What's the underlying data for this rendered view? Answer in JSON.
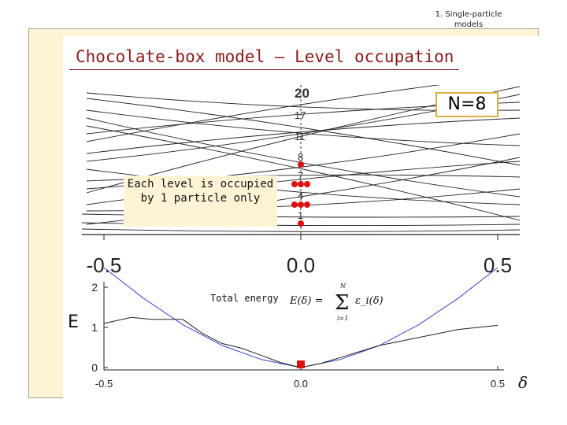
{
  "slide": {
    "section_note": "1. Single-particle models",
    "title": "Chocolate-box model – Level occupation",
    "particle_count": "N=8",
    "note": "Each level is occupied by 1 particle only",
    "total_energy_label": "Total energy",
    "formula_lhs": "E(δ) =",
    "formula_sum": "Σ",
    "formula_upper": "N",
    "formula_lower": "i=1",
    "formula_term": "ε_i(δ)",
    "energy_axis_letter": "E",
    "delta_symbol": "δ"
  },
  "chart_data": [
    {
      "type": "line",
      "description_kind": "single-particle level diagram",
      "x_tick_labels": [
        "-0.5",
        "0.0",
        "0.5"
      ],
      "xlim": [
        -0.5,
        0.5
      ],
      "level_labels_at_zero": [
        "1",
        "4",
        "7",
        "8",
        "11",
        "17",
        "20"
      ],
      "occupied_dots": [
        {
          "level": "1",
          "count": 1
        },
        {
          "level": "4",
          "count": 3
        },
        {
          "level": "7",
          "count": 3
        },
        {
          "level": "8",
          "count": 1
        }
      ],
      "colors": {
        "levels": "#222222",
        "dots": "#dd1111"
      }
    },
    {
      "type": "line",
      "x_tick_labels": [
        "-0.5",
        "0.0",
        "0.5"
      ],
      "y_tick_labels": [
        "0",
        "1",
        "2"
      ],
      "xlim": [
        -0.5,
        0.5
      ],
      "ylim": [
        0,
        2
      ],
      "series": [
        {
          "color": "#3344cc",
          "x": [
            -0.5,
            -0.4,
            -0.3,
            -0.2,
            -0.1,
            0.0,
            0.1,
            0.2,
            0.3,
            0.4,
            0.5
          ],
          "y": [
            2.6,
            1.73,
            1.07,
            0.55,
            0.2,
            0.0,
            0.2,
            0.55,
            1.07,
            1.73,
            2.6
          ]
        },
        {
          "color": "#222222",
          "x": [
            -0.5,
            -0.43,
            -0.38,
            -0.3,
            -0.25,
            -0.2,
            -0.15,
            -0.1,
            -0.05,
            0.0,
            0.05,
            0.1,
            0.2,
            0.3,
            0.4,
            0.5
          ],
          "y": [
            1.1,
            1.25,
            1.2,
            1.2,
            0.85,
            0.6,
            0.48,
            0.3,
            0.12,
            0.0,
            0.1,
            0.25,
            0.55,
            0.75,
            0.95,
            1.05
          ]
        }
      ],
      "marker": {
        "x": 0.0,
        "y": 0.0,
        "color": "#dd1111"
      }
    }
  ]
}
